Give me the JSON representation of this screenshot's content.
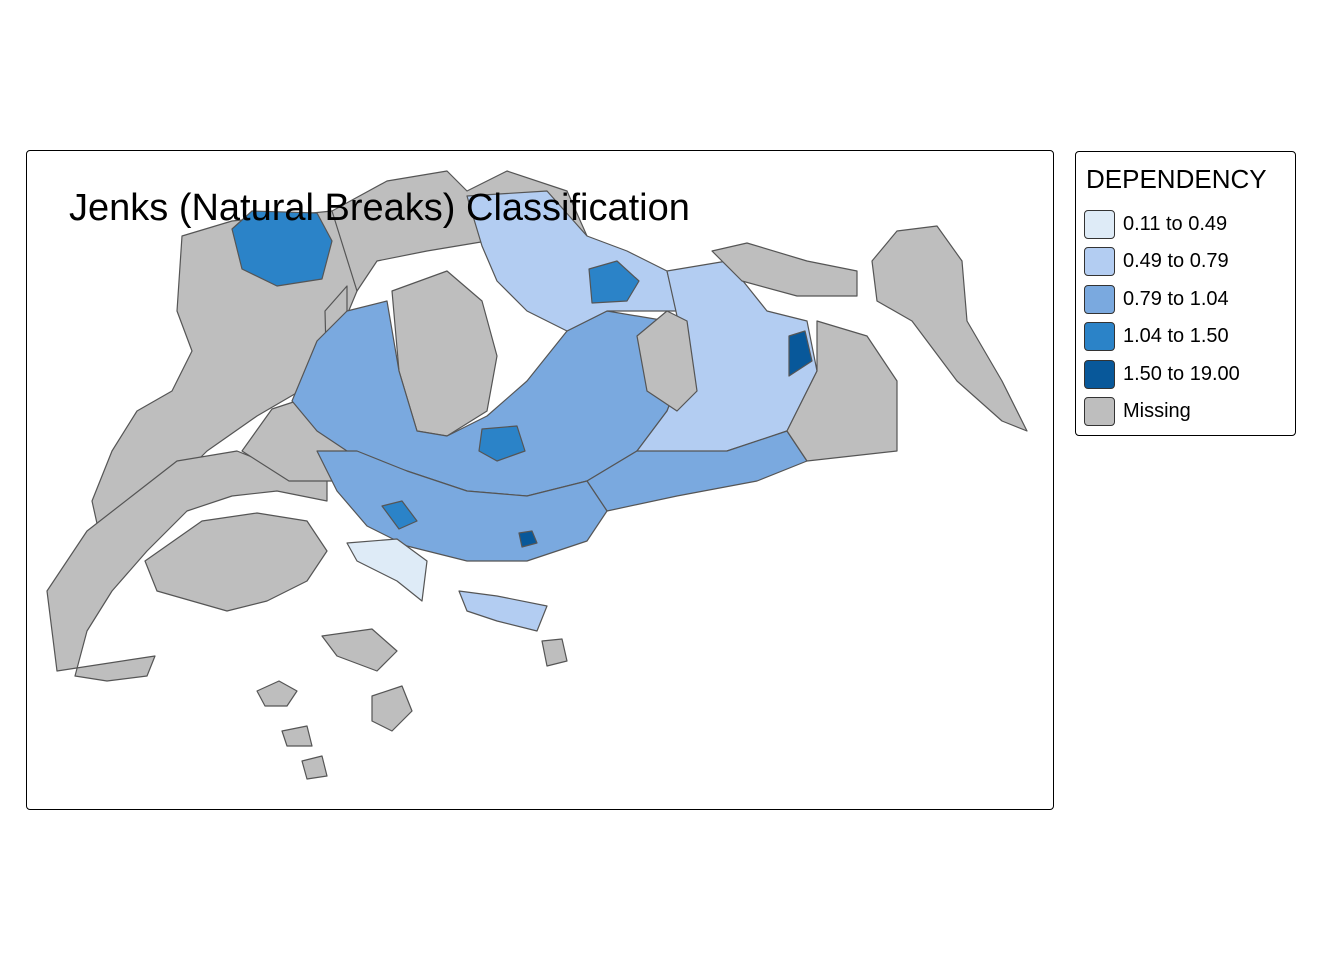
{
  "map": {
    "title": "Jenks (Natural Breaks) Classification",
    "fill_variable": "DEPENDENCY",
    "classification_method": "jenks",
    "missing_color": "#bebebe",
    "border_color": "#555555"
  },
  "legend": {
    "title": "DEPENDENCY",
    "position": "outside-right-top",
    "items": [
      {
        "label": "0.11 to 0.49",
        "color": "#deebf7"
      },
      {
        "label": "0.49 to 0.79",
        "color": "#b3cdf2"
      },
      {
        "label": "0.79 to 1.04",
        "color": "#7aa9df"
      },
      {
        "label": "1.04 to 1.50",
        "color": "#2b83c8"
      },
      {
        "label": "1.50 to 19.00",
        "color": "#08589a"
      },
      {
        "label": "Missing",
        "color": "#bebebe"
      }
    ]
  }
}
